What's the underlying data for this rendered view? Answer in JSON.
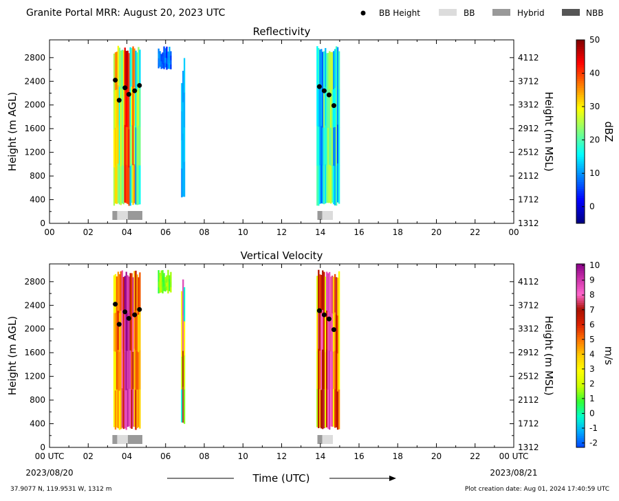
{
  "header": {
    "title": "Granite Portal MRR:  August 20, 2023 UTC",
    "legend": [
      {
        "label": "BB Height",
        "kind": "dot",
        "color": "#000000"
      },
      {
        "label": "BB",
        "kind": "box",
        "color": "#dcdcdc"
      },
      {
        "label": "Hybrid",
        "kind": "box",
        "color": "#999999"
      },
      {
        "label": "NBB",
        "kind": "box",
        "color": "#555555"
      }
    ]
  },
  "footer": {
    "location": "37.9077 N, 119.9531 W, 1312 m",
    "creation": "Plot creation date: Aug 01, 2024 17:40:59 UTC",
    "xaxis_title": "Time (UTC)",
    "start_date": "2023/08/20",
    "end_date": "2023/08/21"
  },
  "chart_data": [
    {
      "type": "heatmap",
      "title": "Reflectivity",
      "ylabel": "Height (m AGL)",
      "ylabel_right": "Height (m MSL)",
      "colorbar_label": "dBZ",
      "xlim": [
        0,
        24
      ],
      "ylim": [
        0,
        3100
      ],
      "x_ticks": [
        "00",
        "02",
        "04",
        "06",
        "08",
        "10",
        "12",
        "14",
        "16",
        "18",
        "20",
        "22",
        "00"
      ],
      "y_ticks": [
        0,
        400,
        800,
        1200,
        1600,
        2000,
        2400,
        2800
      ],
      "y_ticks_right": [
        "1312",
        "1712",
        "2112",
        "2512",
        "2912",
        "3312",
        "3712",
        "4112"
      ],
      "colorbar_range": [
        -5,
        50
      ],
      "colorbar_ticks": [
        "0",
        "10",
        "20",
        "30",
        "40",
        "50"
      ],
      "colorbar_tick_values": [
        0,
        10,
        20,
        30,
        40,
        50
      ],
      "colormap": [
        "#00007f",
        "#0000ff",
        "#007fff",
        "#00ffff",
        "#7fff7f",
        "#ffff00",
        "#ff7f00",
        "#ff0000",
        "#7f0000"
      ],
      "precip_blocks": [
        {
          "t0": 3.3,
          "t1": 4.7,
          "h0": 300,
          "h1": 3000,
          "vmin": 14,
          "vmax": 38,
          "hot": 4.0
        },
        {
          "t0": 5.6,
          "t1": 6.3,
          "h0": 2600,
          "h1": 3000,
          "vmin": 4,
          "vmax": 12,
          "hot": 0
        },
        {
          "t0": 6.8,
          "t1": 7.0,
          "h0": 400,
          "h1": 3000,
          "vmin": 6,
          "vmax": 14,
          "hot": 0
        },
        {
          "t0": 13.8,
          "t1": 15.0,
          "h0": 300,
          "h1": 3000,
          "vmin": 8,
          "vmax": 22,
          "hot": 14.5
        }
      ],
      "bb_height_points": [
        {
          "t": 3.4,
          "h": 2420
        },
        {
          "t": 3.6,
          "h": 2080
        },
        {
          "t": 3.9,
          "h": 2290
        },
        {
          "t": 4.1,
          "h": 2180
        },
        {
          "t": 4.4,
          "h": 2240
        },
        {
          "t": 4.65,
          "h": 2330
        },
        {
          "t": 13.95,
          "h": 2310
        },
        {
          "t": 14.2,
          "h": 2240
        },
        {
          "t": 14.45,
          "h": 2170
        },
        {
          "t": 14.7,
          "h": 1990
        }
      ],
      "bb_class_segments": [
        {
          "t0": 3.25,
          "t1": 3.5,
          "cls": "Hybrid"
        },
        {
          "t0": 3.5,
          "t1": 4.05,
          "cls": "BB"
        },
        {
          "t0": 4.05,
          "t1": 4.8,
          "cls": "Hybrid"
        },
        {
          "t0": 13.85,
          "t1": 14.1,
          "cls": "Hybrid"
        },
        {
          "t0": 14.1,
          "t1": 14.65,
          "cls": "BB"
        }
      ]
    },
    {
      "type": "heatmap",
      "title": "Vertical Velocity",
      "ylabel": "Height (m AGL)",
      "ylabel_right": "Height (m MSL)",
      "colorbar_label": "m/s",
      "xlim": [
        0,
        24
      ],
      "ylim": [
        0,
        3100
      ],
      "x_ticks": [
        "00 UTC",
        "02",
        "04",
        "06",
        "08",
        "10",
        "12",
        "14",
        "16",
        "18",
        "20",
        "22",
        "00 UTC"
      ],
      "y_ticks": [
        0,
        400,
        800,
        1200,
        1600,
        2000,
        2400,
        2800
      ],
      "y_ticks_right": [
        "1312",
        "1712",
        "2112",
        "2512",
        "2912",
        "3312",
        "3712",
        "4112"
      ],
      "colorbar_range": [
        -2.3,
        10.1
      ],
      "colorbar_ticks": [
        "-2",
        "-1",
        "0",
        "1",
        "2",
        "3",
        "4",
        "5",
        "6",
        "7",
        "8",
        "9",
        "10"
      ],
      "colorbar_tick_values": [
        -2,
        -1,
        0,
        1,
        2,
        3,
        4,
        5,
        6,
        7,
        8,
        9,
        10
      ],
      "colormap": [
        "#0044ff",
        "#00aaff",
        "#00ffcc",
        "#33ff33",
        "#ccff00",
        "#ffff00",
        "#ffcc00",
        "#ff7700",
        "#dd2200",
        "#aa1100",
        "#ff66cc",
        "#cc33aa",
        "#880088"
      ],
      "precip_blocks": [
        {
          "t0": 3.3,
          "t1": 4.7,
          "h0": 300,
          "h1": 3000,
          "vmin": 3.5,
          "vmax": 8.5,
          "hot": 4.0
        },
        {
          "t0": 5.6,
          "t1": 6.3,
          "h0": 2600,
          "h1": 3000,
          "vmin": 0.8,
          "vmax": 2.0,
          "hot": 0
        },
        {
          "t0": 6.8,
          "t1": 7.0,
          "h0": 400,
          "h1": 3000,
          "vmin": 1,
          "vmax": 9,
          "hot": 0
        },
        {
          "t0": 13.8,
          "t1": 15.0,
          "h0": 300,
          "h1": 3000,
          "vmin": 2.5,
          "vmax": 8.0,
          "hot": 14.5
        }
      ],
      "bb_height_points": [
        {
          "t": 3.4,
          "h": 2420
        },
        {
          "t": 3.6,
          "h": 2080
        },
        {
          "t": 3.9,
          "h": 2290
        },
        {
          "t": 4.1,
          "h": 2180
        },
        {
          "t": 4.4,
          "h": 2240
        },
        {
          "t": 4.65,
          "h": 2330
        },
        {
          "t": 13.95,
          "h": 2310
        },
        {
          "t": 14.2,
          "h": 2240
        },
        {
          "t": 14.45,
          "h": 2170
        },
        {
          "t": 14.7,
          "h": 1990
        }
      ],
      "bb_class_segments": [
        {
          "t0": 3.25,
          "t1": 3.5,
          "cls": "Hybrid"
        },
        {
          "t0": 3.5,
          "t1": 4.05,
          "cls": "BB"
        },
        {
          "t0": 4.05,
          "t1": 4.8,
          "cls": "Hybrid"
        },
        {
          "t0": 13.85,
          "t1": 14.1,
          "cls": "Hybrid"
        },
        {
          "t0": 14.1,
          "t1": 14.65,
          "cls": "BB"
        }
      ]
    }
  ]
}
